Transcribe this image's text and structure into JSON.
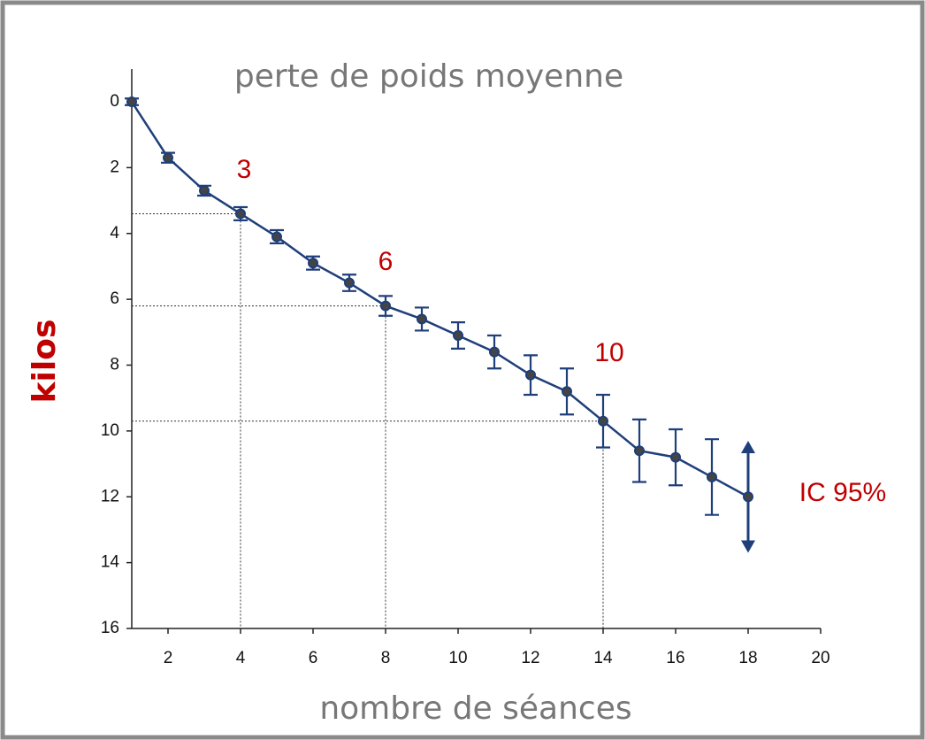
{
  "chart_data": {
    "type": "line",
    "title": "perte de poids moyenne",
    "xlabel": "nombre de séances",
    "ylabel": "kilos",
    "x": [
      1,
      2,
      3,
      4,
      5,
      6,
      7,
      8,
      9,
      10,
      11,
      12,
      13,
      14,
      15,
      16,
      17,
      18
    ],
    "series": [
      {
        "name": "perte de poids moyenne",
        "color": "#1f3f7a",
        "values": [
          0,
          1.7,
          2.7,
          3.4,
          4.1,
          4.9,
          5.5,
          6.2,
          6.6,
          7.1,
          7.6,
          8.3,
          8.8,
          9.7,
          10.6,
          10.8,
          11.4,
          12.0
        ],
        "errors": [
          0.1,
          0.15,
          0.15,
          0.2,
          0.2,
          0.2,
          0.25,
          0.3,
          0.35,
          0.4,
          0.5,
          0.6,
          0.7,
          0.8,
          0.95,
          0.85,
          1.15,
          1.7
        ]
      }
    ],
    "xlim": [
      1,
      20
    ],
    "xticks": [
      2,
      4,
      6,
      8,
      10,
      12,
      14,
      16,
      18,
      20
    ],
    "ylim": [
      0,
      16
    ],
    "yticks": [
      0,
      2,
      4,
      6,
      8,
      10,
      12,
      14,
      16
    ],
    "y_inverted": true,
    "guides": [
      4,
      8,
      14
    ],
    "annotations": [
      "3",
      "6",
      "10",
      "IC 95%"
    ]
  }
}
